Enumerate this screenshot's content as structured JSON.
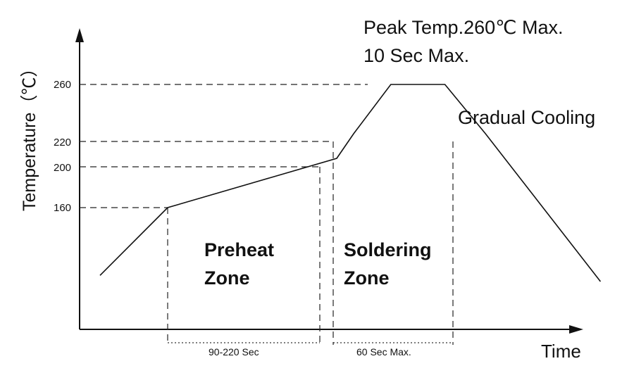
{
  "chart_data": {
    "type": "line",
    "title": "",
    "ylabel": "Temperature（℃）",
    "xlabel": "Time",
    "yticks": [
      160,
      200,
      220,
      260
    ],
    "grid": false,
    "legend": "none",
    "series": [
      {
        "points": [
          {
            "t": 0,
            "y": 105
          },
          {
            "t": 1,
            "y": 160
          },
          {
            "t": 3.5,
            "y": 200
          },
          {
            "t": 3.75,
            "y": 220
          },
          {
            "t": 4.3,
            "y": 260
          },
          {
            "t": 5.1,
            "y": 260
          },
          {
            "t": 5.7,
            "y": 220
          },
          {
            "t": 7.4,
            "y": 100
          }
        ]
      }
    ],
    "annotations": {
      "peak_line1": "Peak Temp.260℃ Max.",
      "peak_line2": "10 Sec Max.",
      "cooling": "Gradual Cooling",
      "preheat_line1": "Preheat",
      "preheat_line2": "Zone",
      "soldering_line1": "Soldering",
      "soldering_line2": "Zone",
      "preheat_duration": "90-220 Sec",
      "soldering_duration": "60 Sec Max."
    }
  }
}
